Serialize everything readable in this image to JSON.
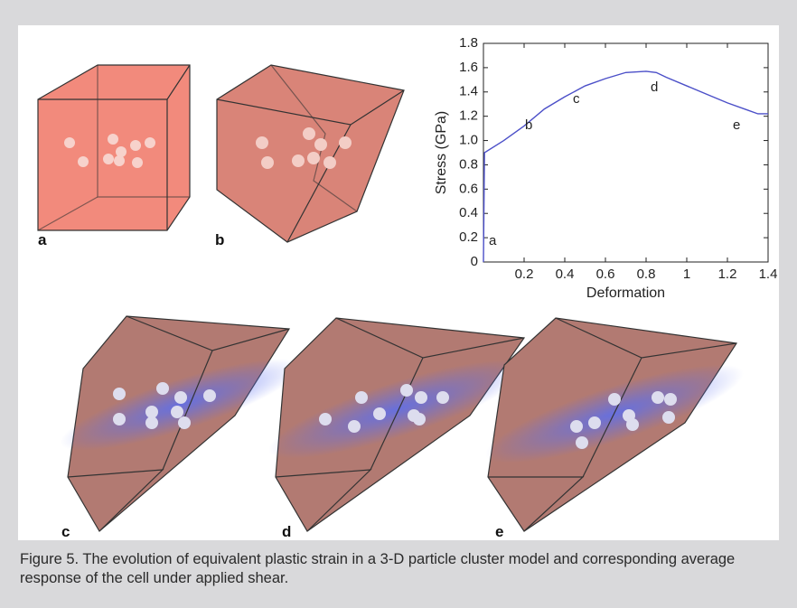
{
  "figure": {
    "panel_labels": [
      "a",
      "b",
      "c",
      "d",
      "e"
    ],
    "caption": "Figure 5. The evolution of equivalent plastic strain in a 3-D particle cluster model and corresponding average response of the cell under applied shear."
  },
  "chart_data": {
    "type": "line",
    "x_label": "Deformation",
    "y_label": "Stress (GPa)",
    "xlim": [
      0,
      1.4
    ],
    "ylim": [
      0,
      1.8
    ],
    "xticks": [
      0.2,
      0.4,
      0.6,
      0.8,
      1,
      1.2,
      1.4
    ],
    "yticks": [
      0,
      0.2,
      0.4,
      0.6,
      0.8,
      {
        "value": 1,
        "label": "1.0"
      },
      1.2,
      1.4,
      1.6,
      1.8
    ],
    "series": [
      {
        "color": "#4b4fc8",
        "x": [
          0,
          0.005,
          0.1,
          0.2,
          0.3,
          0.4,
          0.5,
          0.6,
          0.7,
          0.8,
          0.85,
          0.9,
          1.0,
          1.1,
          1.2,
          1.3,
          1.35,
          1.4
        ],
        "values": [
          0,
          0.9,
          1.0,
          1.12,
          1.26,
          1.36,
          1.45,
          1.51,
          1.56,
          1.57,
          1.56,
          1.52,
          1.45,
          1.38,
          1.31,
          1.25,
          1.22,
          1.22
        ]
      }
    ],
    "annotations": [
      "a",
      "b",
      "c",
      "d",
      "e"
    ]
  }
}
